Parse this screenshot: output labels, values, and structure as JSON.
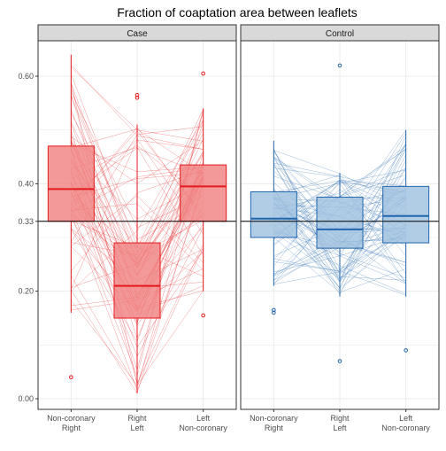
{
  "chart_data": {
    "type": "box",
    "title": "Fraction of coaptation area between leaflets",
    "xlabel": "",
    "ylabel": "",
    "ylim": [
      0.0,
      0.66
    ],
    "yticks": [
      "0.00",
      "0.20",
      "0.33",
      "0.40",
      "0.60"
    ],
    "y_tick_values": [
      0.0,
      0.2,
      0.33,
      0.4,
      0.6
    ],
    "reference_line": 0.33,
    "grid": true,
    "legend": "none",
    "categories": [
      [
        "Non-coronary",
        "Right"
      ],
      [
        "Right",
        "Left"
      ],
      [
        "Left",
        "Non-coronary"
      ]
    ],
    "panels": [
      {
        "name": "Case",
        "color": "#e41a1c",
        "fill": "#f08080",
        "boxes": [
          {
            "q1": 0.33,
            "median": 0.39,
            "q3": 0.47,
            "whisker_low": 0.16,
            "whisker_high": 0.64,
            "outliers": [
              0.04
            ]
          },
          {
            "q1": 0.15,
            "median": 0.21,
            "q3": 0.29,
            "whisker_low": 0.01,
            "whisker_high": 0.51,
            "outliers": [
              0.56,
              0.565
            ]
          },
          {
            "q1": 0.33,
            "median": 0.395,
            "q3": 0.435,
            "whisker_low": 0.2,
            "whisker_high": 0.54,
            "outliers": [
              0.155,
              0.605
            ]
          }
        ]
      },
      {
        "name": "Control",
        "color": "#2166ac",
        "fill": "#9ebfdf",
        "boxes": [
          {
            "q1": 0.3,
            "median": 0.335,
            "q3": 0.385,
            "whisker_low": 0.21,
            "whisker_high": 0.48,
            "outliers": [
              0.16,
              0.165
            ]
          },
          {
            "q1": 0.28,
            "median": 0.315,
            "q3": 0.375,
            "whisker_low": 0.19,
            "whisker_high": 0.42,
            "outliers": [
              0.07,
              0.62
            ]
          },
          {
            "q1": 0.29,
            "median": 0.34,
            "q3": 0.395,
            "whisker_low": 0.19,
            "whisker_high": 0.5,
            "outliers": [
              0.09
            ]
          }
        ]
      }
    ]
  }
}
